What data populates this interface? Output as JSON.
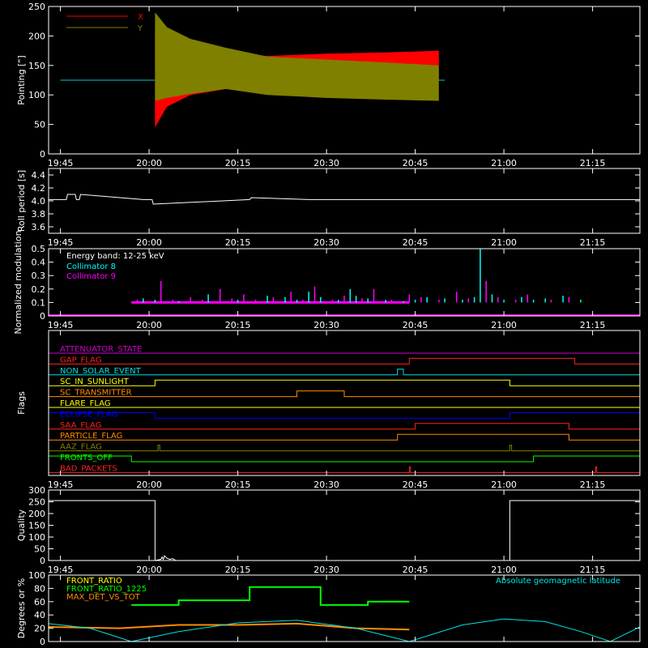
{
  "colors": {
    "background": "#000000",
    "axes": "#ffffff",
    "x_series": "#ff0000",
    "y_series": "#808000",
    "collimator8": "#00ffff",
    "collimator9": "#ff00ff",
    "front_ratio": "#00ff00",
    "front_ratio_1225": "#00ff00",
    "max_det_vs_tot": "#ff8c00",
    "geomag": "#00e5e5"
  },
  "chart_data": [
    {
      "id": "pointing",
      "type": "area",
      "ylabel": "Pointing [\"]",
      "ylim": [
        0,
        250
      ],
      "yticks": [
        "0",
        "50",
        "100",
        "150",
        "200",
        "250"
      ],
      "xticks": [
        "19:45",
        "20:00",
        "20:15",
        "20:30",
        "20:45",
        "21:00",
        "21:15"
      ],
      "xlim_minutes": [
        -2,
        98
      ],
      "legend": [
        {
          "name": "X",
          "color": "#ff0000"
        },
        {
          "name": "Y",
          "color": "#808000"
        }
      ],
      "series": [
        {
          "name": "X",
          "x_minutes": [
            0,
            16,
            50,
            65
          ],
          "upper": [
            125,
            125,
            125,
            125
          ],
          "lower": [
            125,
            125,
            125,
            125
          ]
        },
        {
          "name": "X",
          "x_minutes": [
            16,
            18,
            22,
            28,
            35,
            45,
            55,
            64
          ],
          "upper": [
            215,
            195,
            180,
            170,
            166,
            170,
            172,
            175
          ],
          "lower": [
            45,
            80,
            100,
            110,
            118,
            118,
            120,
            125
          ]
        },
        {
          "name": "Y",
          "x_minutes": [
            16,
            18,
            22,
            28,
            35,
            45,
            55,
            64
          ],
          "upper": [
            240,
            215,
            195,
            180,
            165,
            160,
            155,
            150
          ],
          "lower": [
            90,
            95,
            102,
            110,
            100,
            95,
            92,
            90
          ]
        }
      ]
    },
    {
      "id": "roll",
      "type": "line",
      "ylabel": "Roll period [s]",
      "ylim": [
        3.5,
        4.5
      ],
      "yticks": [
        "3.6",
        "3.8",
        "4.0",
        "4.2",
        "4.4"
      ],
      "xticks": [
        "19:45",
        "20:00",
        "20:15",
        "20:30",
        "20:45",
        "21:00",
        "21:15"
      ],
      "x_minutes": [
        -2,
        1,
        1.2,
        2.5,
        2.7,
        3.2,
        3.4,
        14,
        15.5,
        15.7,
        32,
        32.3,
        42,
        60,
        98
      ],
      "values": [
        4.02,
        4.02,
        4.1,
        4.1,
        4.02,
        4.02,
        4.1,
        4.02,
        4.02,
        3.95,
        4.02,
        4.05,
        4.02,
        4.02,
        4.02
      ]
    },
    {
      "id": "modulation",
      "type": "bar",
      "ylabel": "Normalized modulation",
      "ylim": [
        0,
        0.5
      ],
      "yticks": [
        "0",
        "0.1",
        "0.2",
        "0.3",
        "0.4",
        "0.5"
      ],
      "xticks": [
        "19:45",
        "20:00",
        "20:15",
        "20:30",
        "20:45",
        "21:00",
        "21:15"
      ],
      "annotation": "Energy band: 12-25 keV",
      "series": [
        {
          "name": "Collimator 8",
          "color": "#00ffff",
          "x_minutes": [
            12,
            14,
            16,
            20,
            25,
            30,
            35,
            38,
            40,
            42,
            44,
            47,
            49,
            50,
            52,
            55,
            58,
            60,
            62,
            65,
            68,
            70,
            71,
            73,
            75,
            78,
            80,
            82,
            85,
            88
          ],
          "values": [
            0.1,
            0.13,
            0.12,
            0.11,
            0.16,
            0.12,
            0.15,
            0.14,
            0.12,
            0.18,
            0.14,
            0.12,
            0.2,
            0.15,
            0.13,
            0.12,
            0.11,
            0.12,
            0.14,
            0.13,
            0.12,
            0.14,
            0.5,
            0.16,
            0.12,
            0.14,
            0.12,
            0.13,
            0.15,
            0.12
          ]
        },
        {
          "name": "Collimator 9",
          "color": "#ff00ff",
          "x_minutes": [
            13,
            15,
            17,
            19,
            22,
            24,
            27,
            29,
            31,
            33,
            36,
            39,
            41,
            43,
            46,
            48,
            51,
            53,
            56,
            59,
            61,
            64,
            67,
            69,
            72,
            74,
            77,
            79,
            83,
            86
          ],
          "values": [
            0.12,
            0.1,
            0.26,
            0.12,
            0.14,
            0.12,
            0.2,
            0.13,
            0.16,
            0.12,
            0.14,
            0.18,
            0.12,
            0.22,
            0.12,
            0.15,
            0.13,
            0.2,
            0.12,
            0.16,
            0.14,
            0.12,
            0.18,
            0.13,
            0.26,
            0.14,
            0.12,
            0.16,
            0.12,
            0.14
          ]
        }
      ]
    },
    {
      "id": "flags",
      "type": "line",
      "ylabel": "Flags",
      "xticks": [
        "19:45",
        "20:00",
        "20:15",
        "20:30",
        "20:45",
        "21:00",
        "21:15"
      ],
      "series": [
        {
          "name": "ATTENUATOR_STATE",
          "color": "#d000d0",
          "segments": [
            [
              -2,
              0
            ],
            [
              98,
              0
            ]
          ]
        },
        {
          "name": "GAP_FLAG",
          "color": "#ff2020",
          "segments": [
            [
              -2,
              0
            ],
            [
              59,
              0
            ],
            [
              59,
              1
            ],
            [
              87,
              1
            ],
            [
              87,
              0
            ],
            [
              98,
              0
            ]
          ]
        },
        {
          "name": "NON_SOLAR_EVENT",
          "color": "#00e0e0",
          "segments": [
            [
              -2,
              0
            ],
            [
              57,
              0
            ],
            [
              57,
              1
            ],
            [
              58,
              1
            ],
            [
              58,
              0
            ],
            [
              98,
              0
            ]
          ]
        },
        {
          "name": "SC_IN_SUNLIGHT",
          "color": "#ffff00",
          "segments": [
            [
              -2,
              0
            ],
            [
              16,
              0
            ],
            [
              16,
              1
            ],
            [
              76,
              1
            ],
            [
              76,
              0
            ],
            [
              98,
              0
            ]
          ]
        },
        {
          "name": "SC_TRANSMITTER",
          "color": "#ff8c00",
          "segments": [
            [
              -2,
              0
            ],
            [
              40,
              0
            ],
            [
              40,
              1
            ],
            [
              48,
              1
            ],
            [
              48,
              0
            ],
            [
              98,
              0
            ]
          ]
        },
        {
          "name": "FLARE_FLAG",
          "color": "#ffff00",
          "segments": [
            [
              -2,
              0
            ],
            [
              98,
              0
            ]
          ]
        },
        {
          "name": "ECLIPSE_FLAG",
          "color": "#0000ff",
          "segments": [
            [
              -2,
              1
            ],
            [
              16,
              1
            ],
            [
              16,
              0
            ],
            [
              76,
              0
            ],
            [
              76,
              1
            ],
            [
              98,
              1
            ]
          ]
        },
        {
          "name": "SAA_FLAG",
          "color": "#ff2020",
          "segments": [
            [
              -2,
              0
            ],
            [
              60,
              0
            ],
            [
              60,
              1
            ],
            [
              86,
              1
            ],
            [
              86,
              0
            ],
            [
              98,
              0
            ]
          ]
        },
        {
          "name": "PARTICLE_FLAG",
          "color": "#ff8c00",
          "segments": [
            [
              -2,
              0
            ],
            [
              57,
              0
            ],
            [
              57,
              1
            ],
            [
              86,
              1
            ],
            [
              86,
              0
            ],
            [
              98,
              0
            ]
          ]
        },
        {
          "name": "AAZ_FLAG",
          "color": "#808000",
          "segments": [
            [
              -2,
              0
            ],
            [
              16.5,
              0
            ],
            [
              16.5,
              1
            ],
            [
              16.8,
              1
            ],
            [
              16.8,
              0
            ],
            [
              76,
              0
            ],
            [
              76,
              1
            ],
            [
              76.3,
              1
            ],
            [
              76.3,
              0
            ],
            [
              98,
              0
            ]
          ]
        },
        {
          "name": "FRONTS_OFF",
          "color": "#00ff00",
          "segments": [
            [
              -2,
              1
            ],
            [
              12,
              1
            ],
            [
              12,
              0
            ],
            [
              80,
              0
            ],
            [
              80,
              1
            ],
            [
              98,
              1
            ]
          ]
        },
        {
          "name": "BAD_PACKETS",
          "color": "#ff2020",
          "segments": [
            [
              -2,
              0
            ],
            [
              59,
              0
            ],
            [
              59,
              1
            ],
            [
              59.2,
              1
            ],
            [
              59.2,
              0
            ],
            [
              90.5,
              0
            ],
            [
              90.5,
              1
            ],
            [
              90.7,
              1
            ],
            [
              90.7,
              0
            ],
            [
              98,
              0
            ]
          ]
        }
      ]
    },
    {
      "id": "quality",
      "type": "line",
      "ylabel": "Quality",
      "ylim": [
        0,
        300
      ],
      "yticks": [
        "0",
        "50",
        "100",
        "150",
        "200",
        "250",
        "300"
      ],
      "xticks": [
        "19:45",
        "20:00",
        "20:15",
        "20:30",
        "20:45",
        "21:00",
        "21:15"
      ],
      "x_minutes": [
        -2,
        16,
        16,
        17,
        17.2,
        17.4,
        17.6,
        18,
        18.5,
        19,
        19.5,
        76,
        76,
        98
      ],
      "values": [
        255,
        255,
        0,
        5,
        15,
        5,
        20,
        10,
        5,
        8,
        0,
        0,
        255,
        255
      ]
    },
    {
      "id": "ratios",
      "type": "line",
      "ylabel": "Degrees or %",
      "ylim": [
        0,
        100
      ],
      "yticks": [
        "0",
        "20",
        "40",
        "60",
        "80",
        "100"
      ],
      "legend": [
        {
          "name": "FRONT_RATIO",
          "color": "#ffff00"
        },
        {
          "name": "FRONT_RATIO_1225",
          "color": "#00ff00"
        },
        {
          "name": "MAX_DET_VS_TOT",
          "color": "#ff8c00"
        }
      ],
      "annotation": "Absolute geomagnetic latitude",
      "series": [
        {
          "name": "FRONT_RATIO_1225",
          "x_minutes": [
            12,
            20,
            20,
            32,
            32,
            44,
            44,
            52,
            52,
            59
          ],
          "values": [
            55,
            55,
            62,
            62,
            82,
            82,
            55,
            55,
            60,
            60
          ]
        },
        {
          "name": "MAX_DET_VS_TOT",
          "x_minutes": [
            -2,
            10,
            20,
            30,
            40,
            50,
            59
          ],
          "values": [
            22,
            20,
            25,
            25,
            27,
            20,
            18
          ]
        },
        {
          "name": "Absolute geomagnetic latitude",
          "x_minutes": [
            -2,
            5,
            12,
            20,
            30,
            40,
            50,
            59,
            68,
            75,
            82,
            88,
            93,
            98
          ],
          "values": [
            27,
            20,
            0,
            15,
            28,
            32,
            20,
            0,
            25,
            34,
            30,
            15,
            0,
            22
          ]
        }
      ]
    }
  ]
}
